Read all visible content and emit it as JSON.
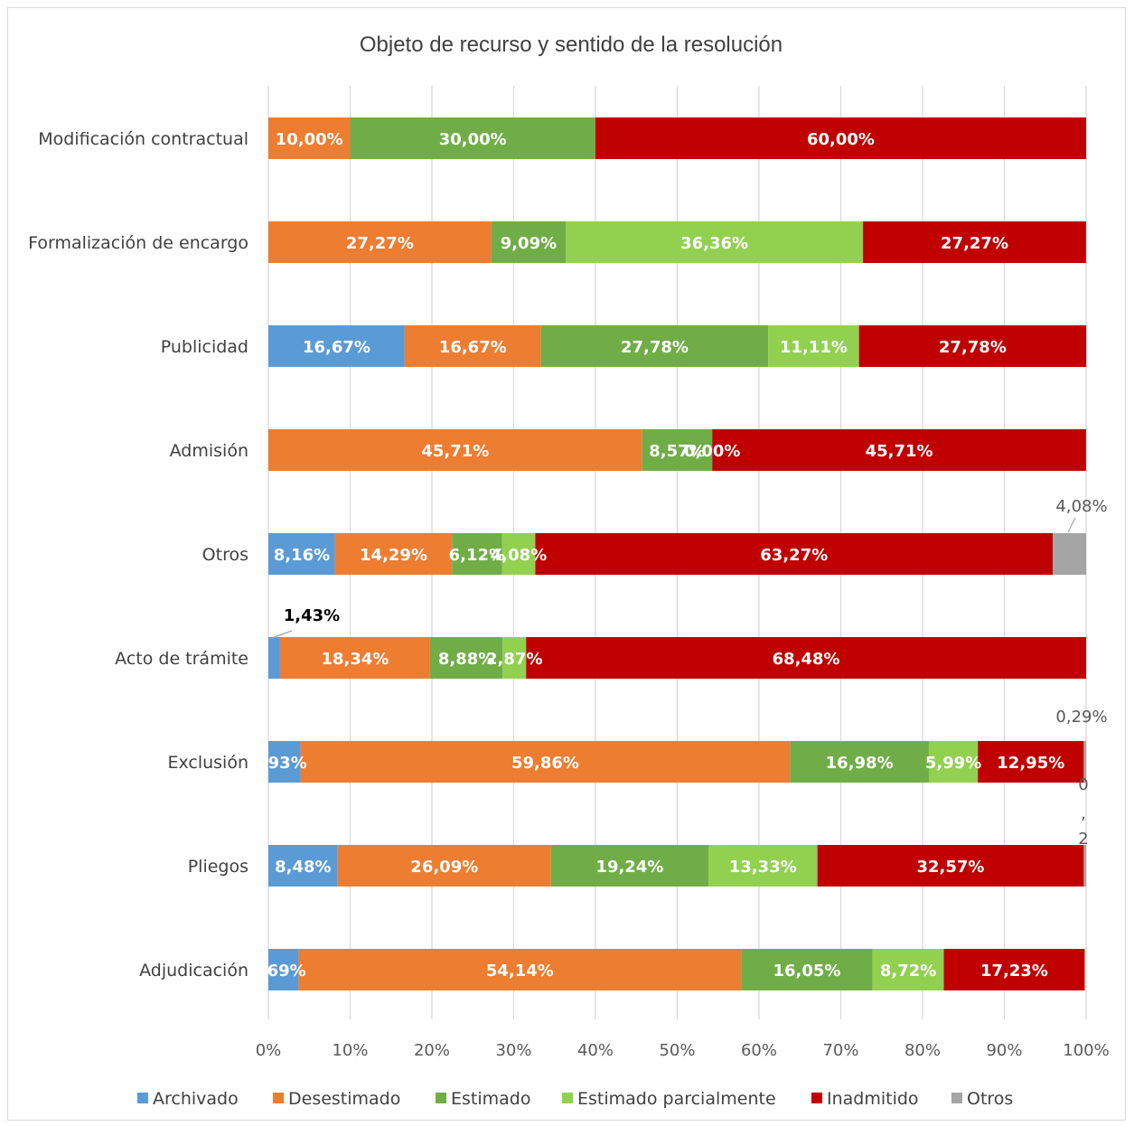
{
  "chart_data": {
    "type": "bar",
    "orientation": "horizontal",
    "stacked": "percent",
    "title": "Objeto de recurso y sentido de la resolución",
    "categories": [
      "Modificación contractual",
      "Formalización de encargo",
      "Publicidad",
      "Admisión",
      "Otros",
      "Acto de trámite",
      "Exclusión",
      "Pliegos",
      "Adjudicación"
    ],
    "series": [
      {
        "name": "Archivado",
        "color": "#5b9bd5",
        "values": [
          0,
          0,
          16.67,
          0,
          8.16,
          1.43,
          3.93,
          8.48,
          3.69
        ],
        "labels": [
          "",
          "",
          "16,67%",
          "",
          "8,16%",
          "1,43%",
          ",93%",
          "8,48%",
          ",69%"
        ]
      },
      {
        "name": "Desestimado",
        "color": "#ed7d31",
        "values": [
          10.0,
          27.27,
          16.67,
          45.71,
          14.29,
          18.34,
          59.86,
          26.09,
          54.14
        ],
        "labels": [
          "10,00%",
          "27,27%",
          "16,67%",
          "45,71%",
          "14,29%",
          "18,34%",
          "59,86%",
          "26,09%",
          "54,14%"
        ]
      },
      {
        "name": "Estimado",
        "color": "#70ad47",
        "values": [
          30.0,
          9.09,
          27.78,
          8.57,
          6.12,
          8.88,
          16.98,
          19.24,
          16.05
        ],
        "labels": [
          "30,00%",
          "9,09%",
          "27,78%",
          "8,57%",
          "6,12%",
          "8,88%",
          "16,98%",
          "19,24%",
          "16,05%"
        ]
      },
      {
        "name": "Estimado parcialmente",
        "color": "#92d050",
        "values": [
          0,
          36.36,
          11.11,
          0,
          4.08,
          2.87,
          5.99,
          13.33,
          8.72
        ],
        "labels": [
          "",
          "36,36%",
          "11,11%",
          "0,00%",
          "4,08%",
          "2,87%",
          "5,99%",
          "13,33%",
          "8,72%"
        ]
      },
      {
        "name": "Inadmitido",
        "color": "#c00000",
        "values": [
          60.0,
          27.27,
          27.78,
          45.71,
          63.27,
          68.48,
          12.95,
          32.57,
          17.23
        ],
        "labels": [
          "60,00%",
          "27,27%",
          "27,78%",
          "45,71%",
          "63,27%",
          "68,48%",
          "12,95%",
          "32,57%",
          "17,23%"
        ]
      },
      {
        "name": "Otros",
        "color": "#a5a5a5",
        "values": [
          0,
          0,
          0,
          0,
          4.08,
          0,
          0.29,
          0.29,
          0
        ],
        "labels": [
          "",
          "",
          "",
          "",
          "4,08%",
          "",
          "0,29%",
          "0\n,\n2",
          ""
        ]
      }
    ],
    "xlim": [
      0,
      100
    ],
    "x_ticks": [
      "0%",
      "10%",
      "20%",
      "30%",
      "40%",
      "50%",
      "60%",
      "70%",
      "80%",
      "90%",
      "100%"
    ],
    "grid": "vertical",
    "legend": "bottom",
    "outside_labels": {
      "Otros|Otros": "4,08%",
      "Acto de trámite|Archivado": "1,43%",
      "Exclusión|Otros": "0,29%",
      "Pliegos|Otros": "0\n,\n2"
    }
  }
}
